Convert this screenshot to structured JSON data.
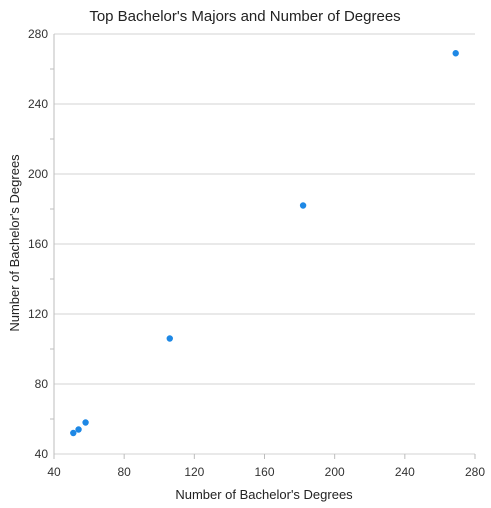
{
  "chart_data": {
    "type": "scatter",
    "title": "Top Bachelor's Majors and Number of Degrees",
    "xlabel": "Number of Bachelor's Degrees",
    "ylabel": "Number of Bachelor's Degrees",
    "xlim": [
      40,
      280
    ],
    "ylim": [
      40,
      280
    ],
    "xticks": [
      40,
      80,
      120,
      160,
      200,
      240,
      280
    ],
    "yticks": [
      40,
      80,
      120,
      160,
      200,
      240,
      280
    ],
    "grid": true,
    "point_color": "#1e88e5",
    "points": [
      {
        "x": 51,
        "y": 52
      },
      {
        "x": 54,
        "y": 54
      },
      {
        "x": 58,
        "y": 58
      },
      {
        "x": 106,
        "y": 106
      },
      {
        "x": 182,
        "y": 182
      },
      {
        "x": 269,
        "y": 269
      }
    ]
  }
}
